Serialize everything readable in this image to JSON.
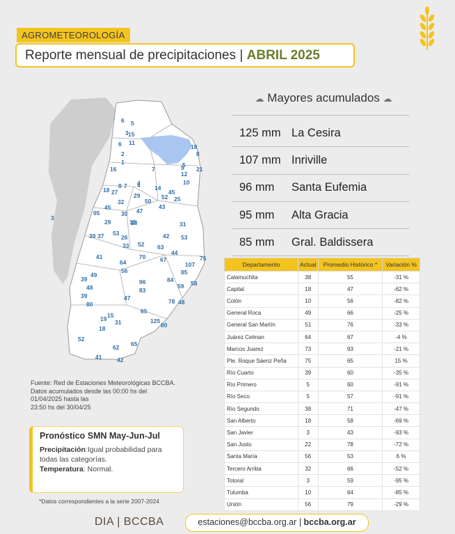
{
  "header": {
    "section_tag": "AGROMETEOROLOGÍA",
    "title_prefix": "Reporte mensual de precipitaciones",
    "title_sep": " | ",
    "title_period": "ABRIL 2025"
  },
  "colors": {
    "accent": "#f3c320",
    "highlight": "#6b7d2a",
    "map_label": "#2f6fa8",
    "lake": "#a9c6f0"
  },
  "top_rank": {
    "title": "Mayores acumulados",
    "items": [
      {
        "mm": "125 mm",
        "location": "La Cesira"
      },
      {
        "mm": "107 mm",
        "location": "Inriville"
      },
      {
        "mm": "96 mm",
        "location": "Santa Eufemia"
      },
      {
        "mm": "95 mm",
        "location": "Alta Gracia"
      },
      {
        "mm": "85 mm",
        "location": "Gral. Baldissera"
      }
    ]
  },
  "table": {
    "headers": [
      "Departamento",
      "Actual",
      "Promedio Histórico *",
      "Variación %"
    ],
    "rows": [
      [
        "Calamuchita",
        "38",
        "55",
        "-31 %"
      ],
      [
        "Capital",
        "18",
        "47",
        "-62 %"
      ],
      [
        "Colón",
        "10",
        "56",
        "-82 %"
      ],
      [
        "General Roca",
        "49",
        "66",
        "-25 %"
      ],
      [
        "General San Martín",
        "51",
        "76",
        "-33 %"
      ],
      [
        "Juárez Celman",
        "64",
        "67",
        "-4 %"
      ],
      [
        "Marcos Juarez",
        "73",
        "93",
        "-21 %"
      ],
      [
        "Pte. Roque Sáenz Peña",
        "75",
        "65",
        "15 %"
      ],
      [
        "Río Cuarto",
        "39",
        "60",
        "-35 %"
      ],
      [
        "Río Primero",
        "5",
        "60",
        "-91 %"
      ],
      [
        "Río Seco",
        "5",
        "57",
        "-91 %"
      ],
      [
        "Río Segundo",
        "38",
        "71",
        "-47 %"
      ],
      [
        "San Alberto",
        "18",
        "58",
        "-69 %"
      ],
      [
        "San Javier",
        "3",
        "43",
        "-93 %"
      ],
      [
        "San Justo",
        "22",
        "78",
        "-72 %"
      ],
      [
        "Santa María",
        "56",
        "53",
        "6 %"
      ],
      [
        "Tercero Arriba",
        "32",
        "66",
        "-52 %"
      ],
      [
        "Totoral",
        "3",
        "59",
        "-95 %"
      ],
      [
        "Tulumba",
        "10",
        "64",
        "-85 %"
      ],
      [
        "Unión",
        "56",
        "79",
        "-29 %"
      ]
    ]
  },
  "source": {
    "line1": "Fuente: Red de Estaciones Meteorológicas BCCBA.",
    "line2": "Datos acumulados desde las 00:00 hs del",
    "line3": "01/04/2025 hasta las",
    "line4": "23:50 hs del 30/04/25"
  },
  "forecast": {
    "title": "Pronóstico SMN May-Jun-Jul",
    "precip_label": "Precipitación",
    "precip_text": ":Igual probabilidad para todas las categorías.",
    "temp_label": "Temperatura",
    "temp_text": ": Normal."
  },
  "footnote": "*Datos correspondientes a la serie 2007-2024",
  "footer": {
    "brand": "DIA | BCCBA",
    "email": "estaciones@bccba.org.ar",
    "sep": " | ",
    "website": "bccba.org.ar"
  },
  "map_labels": [
    "6",
    "5",
    "3",
    "15",
    "11",
    "18",
    "8",
    "21",
    "5",
    "6",
    "2",
    "9",
    "16",
    "1",
    "7",
    "12",
    "10",
    "4",
    "14",
    "52",
    "45",
    "25",
    "50",
    "43",
    "18",
    "27",
    "8",
    "7",
    "4",
    "29",
    "18",
    "95",
    "45",
    "32",
    "30",
    "47",
    "29",
    "18",
    "31",
    "53",
    "26",
    "42",
    "53",
    "39",
    "37",
    "33",
    "52",
    "63",
    "44",
    "75",
    "41",
    "64",
    "70",
    "67",
    "49",
    "39",
    "56",
    "96",
    "85",
    "84",
    "107",
    "59",
    "58",
    "83",
    "39",
    "48",
    "47",
    "80",
    "78",
    "48",
    "65",
    "19",
    "15",
    "31",
    "125",
    "80",
    "18",
    "52",
    "65",
    "62",
    "41",
    "42",
    "3"
  ]
}
